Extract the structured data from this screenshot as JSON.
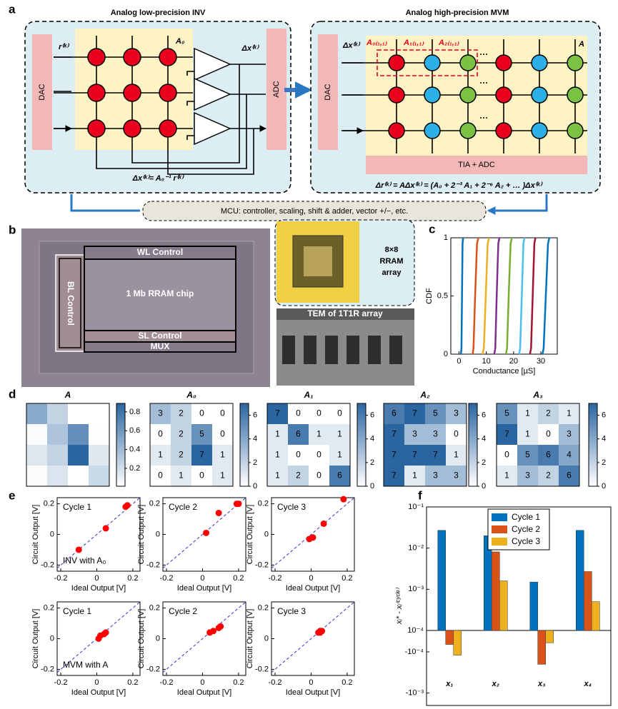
{
  "panel_labels": [
    "a",
    "b",
    "c",
    "d",
    "e",
    "f"
  ],
  "panel_a": {
    "inv_title": "Analog low-precision INV",
    "mvm_title": "Analog high-precision MVM",
    "dac_left": "DAC",
    "adc": "ADC",
    "dac_right": "DAC",
    "tia_adc": "TIA + ADC",
    "mcu": "MCU: controller, scaling, shift & adder, vector +/−, etc.",
    "r_in": "r⁽ᵏ⁾",
    "dx_out": "Δx⁽ᵏ⁾",
    "dx_in": "Δx⁽ᵏ⁾",
    "a0": "A₀",
    "a": "A",
    "a0_11": "A₀₍₁,₁₎",
    "a1_11": "A₁₍₁,₁₎",
    "a2_11": "A₂₍₁,₁₎",
    "inv_eq": "Δx⁽ᵏ⁾= A₀⁻¹ r⁽ᵏ⁾",
    "mvm_eq": "Δr⁽ᵏ⁾ = AΔx⁽ᵏ⁾ = (A₀ + 2⁻³ A₁ + 2⁻⁶ A₂ + … )Δx⁽ᵏ⁾"
  },
  "panel_b": {
    "wl": "WL Control",
    "bl": "BL Control",
    "chip": "1 Mb RRAM chip",
    "sl": "SL Control",
    "mux": "MUX",
    "array": [
      "8×8",
      "RRAM",
      "array"
    ],
    "tem": "TEM of 1T1R array"
  },
  "chart_data": [
    {
      "type": "line",
      "xlabel": "Conductance [µS]",
      "ylabel": "CDF",
      "xlim": [
        -3,
        36
      ],
      "ylim": [
        0,
        1
      ],
      "xticks": [
        0,
        10,
        20,
        30
      ],
      "yticks": [
        0,
        0.5,
        1
      ],
      "series": [
        {
          "color": "#0072bd",
          "x": [
            0.7,
            0.9,
            1.1,
            1.3,
            1.5
          ],
          "y": [
            0,
            0.05,
            0.5,
            0.95,
            1
          ]
        },
        {
          "color": "#d95319",
          "x": [
            5.0,
            5.3,
            5.9,
            6.6,
            7.1
          ],
          "y": [
            0,
            0.05,
            0.5,
            0.95,
            1
          ]
        },
        {
          "color": "#edb120",
          "x": [
            8.6,
            9.1,
            9.8,
            10.5,
            11.0
          ],
          "y": [
            0,
            0.05,
            0.5,
            0.95,
            1
          ]
        },
        {
          "color": "#7e2f8e",
          "x": [
            12.9,
            13.3,
            13.8,
            14.4,
            14.8
          ],
          "y": [
            0,
            0.05,
            0.5,
            0.95,
            1
          ]
        },
        {
          "color": "#77ac30",
          "x": [
            17.2,
            17.6,
            18.2,
            18.9,
            19.4
          ],
          "y": [
            0,
            0.05,
            0.5,
            0.95,
            1
          ]
        },
        {
          "color": "#4dbeee",
          "x": [
            22.0,
            22.4,
            23.0,
            23.6,
            24.0
          ],
          "y": [
            0,
            0.05,
            0.5,
            0.95,
            1
          ]
        },
        {
          "color": "#a2142f",
          "x": [
            26.0,
            26.4,
            27.0,
            27.6,
            28.0
          ],
          "y": [
            0,
            0.05,
            0.5,
            0.95,
            1
          ]
        },
        {
          "color": "#0072bd",
          "x": [
            30.6,
            31.0,
            31.8,
            32.6,
            33.1
          ],
          "y": [
            0,
            0.05,
            0.5,
            0.95,
            1
          ]
        }
      ]
    },
    {
      "type": "heatmap",
      "title": "A",
      "show_values": false,
      "zlim": [
        0.01,
        0.89
      ],
      "colors": [
        "#ffffff",
        "#2b65a0"
      ],
      "colorbar_ticks": [
        0.2,
        0.4,
        0.6,
        0.8
      ],
      "values": [
        [
          0.5,
          0.26,
          0.01,
          0.01
        ],
        [
          0.03,
          0.35,
          0.65,
          0.02
        ],
        [
          0.15,
          0.26,
          0.89,
          0.14
        ],
        [
          0.03,
          0.16,
          0.01,
          0.23
        ]
      ]
    },
    {
      "type": "heatmap",
      "title": "A₀",
      "show_values": true,
      "zlim": [
        0,
        7
      ],
      "colors": [
        "#ffffff",
        "#2b65a0"
      ],
      "colorbar_ticks": [
        0,
        2,
        4,
        6
      ],
      "values": [
        [
          3,
          2,
          0,
          0
        ],
        [
          0,
          2,
          5,
          0
        ],
        [
          1,
          2,
          7,
          1
        ],
        [
          0,
          1,
          0,
          1
        ]
      ]
    },
    {
      "type": "heatmap",
      "title": "A₁",
      "show_values": true,
      "zlim": [
        0,
        7
      ],
      "colors": [
        "#ffffff",
        "#2b65a0"
      ],
      "colorbar_ticks": [
        0,
        2,
        4,
        6
      ],
      "values": [
        [
          7,
          0,
          0,
          0
        ],
        [
          1,
          6,
          1,
          1
        ],
        [
          1,
          0,
          0,
          1
        ],
        [
          1,
          2,
          0,
          6
        ]
      ]
    },
    {
      "type": "heatmap",
      "title": "A₂",
      "show_values": true,
      "zlim": [
        0,
        7
      ],
      "colors": [
        "#ffffff",
        "#2b65a0"
      ],
      "colorbar_ticks": [
        0,
        2,
        4,
        6
      ],
      "values": [
        [
          6,
          7,
          5,
          3
        ],
        [
          7,
          3,
          3,
          0
        ],
        [
          7,
          7,
          7,
          1
        ],
        [
          7,
          1,
          3,
          3
        ]
      ]
    },
    {
      "type": "heatmap",
      "title": "A₃",
      "show_values": true,
      "zlim": [
        0,
        7
      ],
      "colors": [
        "#ffffff",
        "#2b65a0"
      ],
      "colorbar_ticks": [
        0,
        2,
        4,
        6
      ],
      "values": [
        [
          5,
          1,
          2,
          1
        ],
        [
          7,
          1,
          0,
          3
        ],
        [
          0,
          5,
          6,
          4
        ],
        [
          1,
          3,
          2,
          6
        ]
      ]
    },
    {
      "type": "scatter",
      "title": "Cycle 1",
      "annotation": "INV with A₀",
      "color": "#ff0000",
      "diagonal": true,
      "xlabel": "Ideal Output [V]",
      "ylabel": "Circuit Output [V]",
      "xlim": [
        -0.22,
        0.24
      ],
      "ylim": [
        -0.24,
        0.24
      ],
      "xticks": [
        -0.2,
        0,
        0.2
      ],
      "yticks": [
        -0.2,
        0,
        0.2
      ],
      "x": [
        -0.1,
        0.05,
        0.16,
        0.17
      ],
      "y": [
        -0.1,
        0.04,
        0.18,
        0.19
      ]
    },
    {
      "type": "scatter",
      "title": "Cycle 2",
      "color": "#ff0000",
      "diagonal": true,
      "xlabel": "Ideal Output [V]",
      "ylabel": "Circuit Output [V]",
      "xlim": [
        -0.22,
        0.24
      ],
      "ylim": [
        -0.24,
        0.24
      ],
      "xticks": [
        -0.2,
        0,
        0.2
      ],
      "yticks": [
        -0.2,
        0,
        0.2
      ],
      "x": [
        0.02,
        0.09,
        0.19,
        0.2
      ],
      "y": [
        0.01,
        0.14,
        0.2,
        0.2
      ]
    },
    {
      "type": "scatter",
      "title": "Cycle 3",
      "color": "#ff0000",
      "diagonal": true,
      "xlabel": "Ideal Output [V]",
      "ylabel": "Circuit Output [V]",
      "xlim": [
        -0.22,
        0.24
      ],
      "ylim": [
        -0.24,
        0.24
      ],
      "xticks": [
        -0.2,
        0,
        0.2
      ],
      "yticks": [
        -0.2,
        0,
        0.2
      ],
      "x": [
        -0.01,
        0.01,
        0.07,
        0.18
      ],
      "y": [
        -0.03,
        -0.02,
        0.07,
        0.23
      ]
    },
    {
      "type": "scatter",
      "title": "Cycle 1",
      "annotation": "MVM with A",
      "color": "#ff0000",
      "diagonal": true,
      "xlabel": "Ideal Output [V]",
      "ylabel": "Circuit Output [V]",
      "xlim": [
        -0.22,
        0.24
      ],
      "ylim": [
        -0.24,
        0.24
      ],
      "xticks": [
        -0.2,
        0,
        0.2
      ],
      "yticks": [
        -0.2,
        0,
        0.2
      ],
      "x": [
        0.01,
        0.02,
        0.04,
        0.05
      ],
      "y": [
        0.0,
        0.02,
        0.03,
        0.04
      ]
    },
    {
      "type": "scatter",
      "title": "Cycle 2",
      "color": "#ff0000",
      "diagonal": true,
      "xlabel": "Ideal Output [V]",
      "ylabel": "Circuit Output [V]",
      "xlim": [
        -0.22,
        0.24
      ],
      "ylim": [
        -0.24,
        0.24
      ],
      "xticks": [
        -0.2,
        0,
        0.2
      ],
      "yticks": [
        -0.2,
        0,
        0.2
      ],
      "x": [
        0.04,
        0.06,
        0.09,
        0.1
      ],
      "y": [
        0.04,
        0.05,
        0.07,
        0.08
      ]
    },
    {
      "type": "scatter",
      "title": "Cycle 3",
      "color": "#ff0000",
      "diagonal": true,
      "xlabel": "Ideal Output [V]",
      "ylabel": "Circuit Output [V]",
      "xlim": [
        -0.22,
        0.24
      ],
      "ylim": [
        -0.24,
        0.24
      ],
      "xticks": [
        -0.2,
        0,
        0.2
      ],
      "yticks": [
        -0.2,
        0,
        0.2
      ],
      "x": [
        0.04,
        0.05,
        0.05,
        0.06
      ],
      "y": [
        0.04,
        0.04,
        0.05,
        0.05
      ]
    },
    {
      "type": "bar",
      "yscale": "symlog",
      "ylabel": "xᵢ* - xᵢ⁽ᶜʸᶜˡᵉ⁾",
      "legend": "top",
      "categories": [
        "x₁",
        "x₂",
        "x₃",
        "x₄"
      ],
      "ylim": [
        -0.002,
        0.1
      ],
      "yticks": [
        {
          "value": 0.1,
          "label": "10⁻¹"
        },
        {
          "value": 0.01,
          "label": "10⁻²"
        },
        {
          "value": 0.001,
          "label": "10⁻³"
        },
        {
          "value": 0.0001,
          "label": "10⁻⁴"
        },
        {
          "value": -0.0001,
          "label": "-10⁻⁴"
        },
        {
          "value": -0.001,
          "label": "-10⁻³"
        }
      ],
      "series": [
        {
          "name": "Cycle 1",
          "color": "#0072bd",
          "values": [
            0.027,
            0.02,
            0.0015,
            0.027
          ]
        },
        {
          "name": "Cycle 2",
          "color": "#d95319",
          "values": [
            -6.6e-05,
            0.0081,
            -0.0002,
            0.0027
          ]
        },
        {
          "name": "Cycle 3",
          "color": "#edb120",
          "values": [
            -0.00012,
            0.0016,
            -6e-05,
            0.0005
          ]
        }
      ]
    }
  ]
}
